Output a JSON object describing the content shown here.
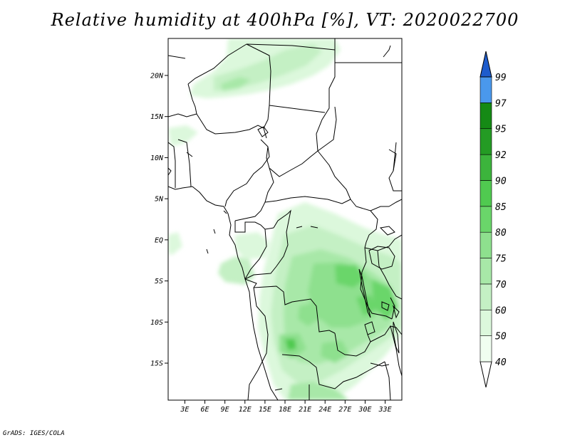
{
  "title": "Relative humidity at 400hPa [%], VT: 2020022700",
  "credit": "GrADS: IGES/COLA",
  "map": {
    "lon_range": [
      0.5,
      35.5
    ],
    "lat_range": [
      -19.5,
      24.5
    ],
    "lat_ticks": [
      {
        "value": 20,
        "label": "20N"
      },
      {
        "value": 15,
        "label": "15N"
      },
      {
        "value": 10,
        "label": "10N"
      },
      {
        "value": 5,
        "label": "5N"
      },
      {
        "value": 0,
        "label": "EQ"
      },
      {
        "value": -5,
        "label": "5S"
      },
      {
        "value": -10,
        "label": "10S"
      },
      {
        "value": -15,
        "label": "15S"
      }
    ],
    "lon_ticks": [
      {
        "value": 3,
        "label": "3E"
      },
      {
        "value": 6,
        "label": "6E"
      },
      {
        "value": 9,
        "label": "9E"
      },
      {
        "value": 12,
        "label": "12E"
      },
      {
        "value": 15,
        "label": "15E"
      },
      {
        "value": 18,
        "label": "18E"
      },
      {
        "value": 21,
        "label": "21E"
      },
      {
        "value": 24,
        "label": "24E"
      },
      {
        "value": 27,
        "label": "27E"
      },
      {
        "value": 30,
        "label": "30E"
      },
      {
        "value": 33,
        "label": "33E"
      }
    ]
  },
  "colorbar": {
    "levels": [
      {
        "label": "40",
        "color": "#f0fef0"
      },
      {
        "label": "50",
        "color": "#dcf8dc"
      },
      {
        "label": "60",
        "color": "#c4f0c4"
      },
      {
        "label": "70",
        "color": "#a8e8a8"
      },
      {
        "label": "75",
        "color": "#8ee08e"
      },
      {
        "label": "80",
        "color": "#6ad66a"
      },
      {
        "label": "85",
        "color": "#50ca50"
      },
      {
        "label": "90",
        "color": "#3cb43c"
      },
      {
        "label": "92",
        "color": "#249b24"
      },
      {
        "label": "95",
        "color": "#158a15"
      },
      {
        "label": "97",
        "color": "#4a98ec"
      },
      {
        "label": "99",
        "color": "#2a70d8"
      }
    ],
    "below_color": "#ffffff",
    "above_color": "#1e5ccc"
  }
}
